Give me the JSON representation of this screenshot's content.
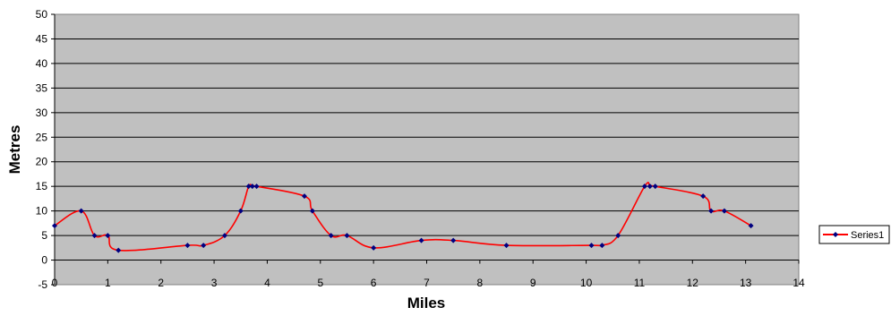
{
  "chart_data": {
    "type": "line",
    "title": "",
    "xlabel": "Miles",
    "ylabel": "Metres",
    "xlim": [
      0,
      14
    ],
    "ylim": [
      -5,
      50
    ],
    "x_ticks": [
      "0",
      "1",
      "2",
      "3",
      "4",
      "5",
      "6",
      "7",
      "8",
      "9",
      "10",
      "11",
      "12",
      "13",
      "14"
    ],
    "y_ticks": [
      "50",
      "45",
      "40",
      "35",
      "30",
      "25",
      "20",
      "15",
      "10",
      "5",
      "0",
      "-5"
    ],
    "grid": "horizontal",
    "legend_position": "right",
    "plot_background": "#c0c0c0",
    "series": [
      {
        "name": "Series1",
        "line_color": "#ff0000",
        "marker_color": "#000080",
        "smoothed": true,
        "points": [
          {
            "x": 0,
            "y": 7
          },
          {
            "x": 0.5,
            "y": 10
          },
          {
            "x": 0.75,
            "y": 5
          },
          {
            "x": 1.0,
            "y": 5
          },
          {
            "x": 1.2,
            "y": 2
          },
          {
            "x": 2.5,
            "y": 3
          },
          {
            "x": 2.8,
            "y": 3
          },
          {
            "x": 3.2,
            "y": 5
          },
          {
            "x": 3.5,
            "y": 10
          },
          {
            "x": 3.65,
            "y": 15
          },
          {
            "x": 3.72,
            "y": 15
          },
          {
            "x": 3.8,
            "y": 15
          },
          {
            "x": 4.7,
            "y": 13
          },
          {
            "x": 4.85,
            "y": 10
          },
          {
            "x": 5.2,
            "y": 5
          },
          {
            "x": 5.5,
            "y": 5
          },
          {
            "x": 6.0,
            "y": 2.5
          },
          {
            "x": 6.9,
            "y": 4
          },
          {
            "x": 7.5,
            "y": 4
          },
          {
            "x": 8.5,
            "y": 3
          },
          {
            "x": 10.1,
            "y": 3
          },
          {
            "x": 10.3,
            "y": 3
          },
          {
            "x": 10.6,
            "y": 5
          },
          {
            "x": 11.1,
            "y": 15
          },
          {
            "x": 11.2,
            "y": 15
          },
          {
            "x": 11.3,
            "y": 15
          },
          {
            "x": 12.2,
            "y": 13
          },
          {
            "x": 12.35,
            "y": 10
          },
          {
            "x": 12.6,
            "y": 10
          },
          {
            "x": 13.1,
            "y": 7
          }
        ]
      }
    ]
  }
}
